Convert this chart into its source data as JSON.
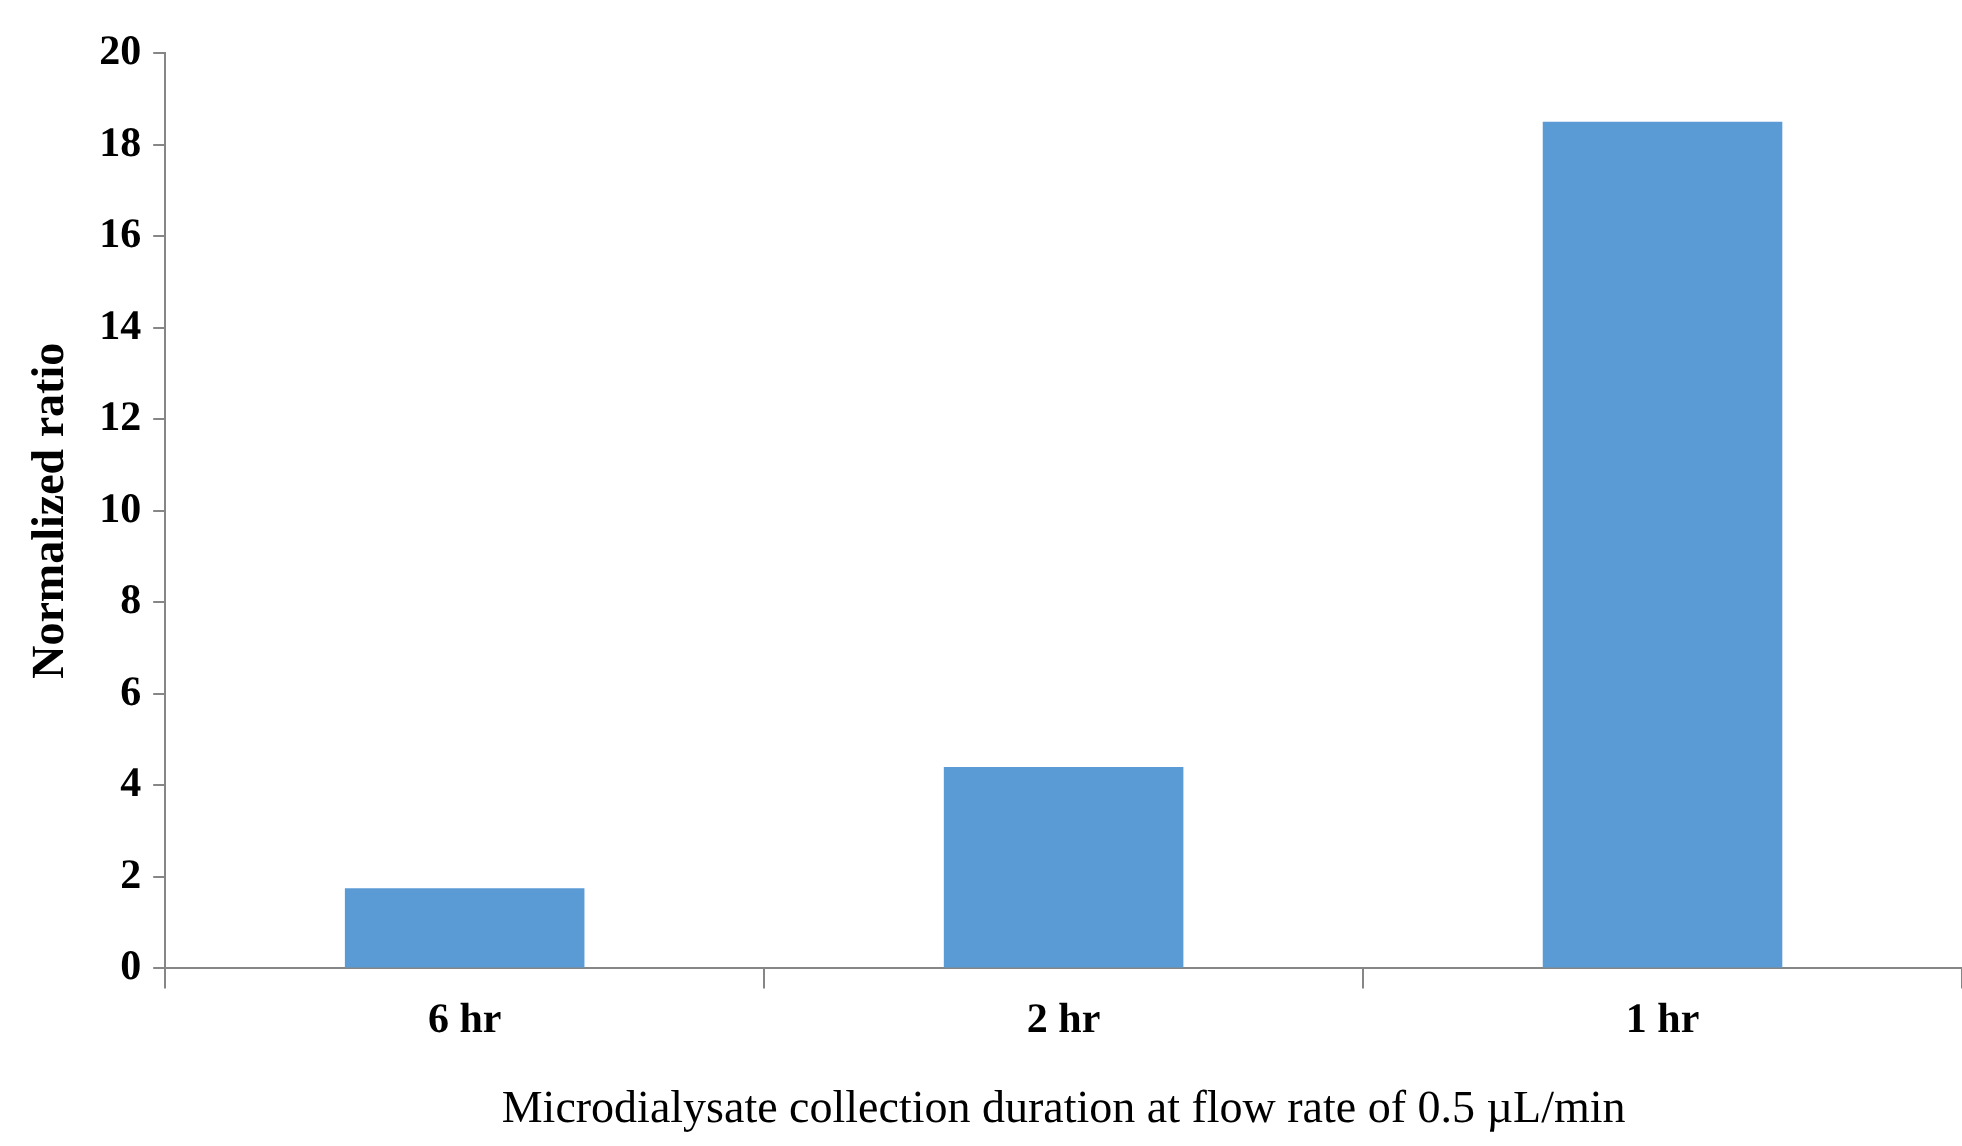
{
  "chart_data": {
    "type": "bar",
    "xlabel": "Microdialysate collection duration at flow rate of 0.5 µL/min",
    "ylabel": "Normalized ratio",
    "categories": [
      "6 hr",
      "2 hr",
      "1 hr"
    ],
    "values": [
      1.75,
      4.4,
      18.5
    ],
    "color": "#5b9bd5",
    "ylim": [
      0,
      20
    ],
    "yticks": [
      0,
      2,
      4,
      6,
      8,
      10,
      12,
      14,
      16,
      18,
      20
    ]
  }
}
